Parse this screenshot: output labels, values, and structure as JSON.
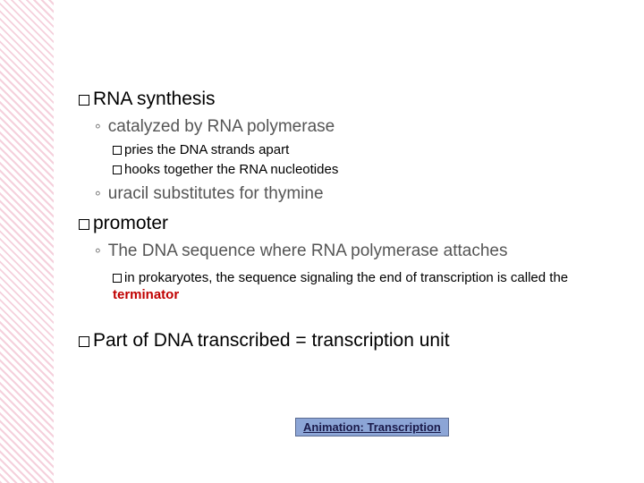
{
  "colors": {
    "background": "#000000",
    "slide_bg": "#ffffff",
    "sidebar_stripe_a": "#f5d0dc",
    "sidebar_stripe_b": "#ffffff",
    "text_main": "#000000",
    "text_sub": "#555555",
    "accent_red": "#c00000",
    "button_bg": "#8ca5d6",
    "button_border": "#5a6a90",
    "button_text": "#1a1a4a"
  },
  "typography": {
    "level1_fontsize": 21,
    "sub1_fontsize": 19,
    "sub2_fontsize": 15,
    "button_fontsize": 13
  },
  "content": {
    "item1": {
      "label": "RNA synthesis",
      "sub1": "catalyzed by RNA polymerase",
      "sub1a": "pries the DNA strands apart",
      "sub1b": "hooks together the RNA nucleotides",
      "sub2": "uracil substitutes for thymine"
    },
    "item2": {
      "label": "promoter",
      "sub1": "The DNA sequence where RNA polymerase attaches",
      "sub1a_pre": "in prokaryotes, the sequence signaling the end of transcription is called the ",
      "sub1a_term": "terminator"
    },
    "item3": {
      "label": "Part of DNA transcribed = transcription unit"
    },
    "button": {
      "label": "Animation: Transcription"
    }
  }
}
